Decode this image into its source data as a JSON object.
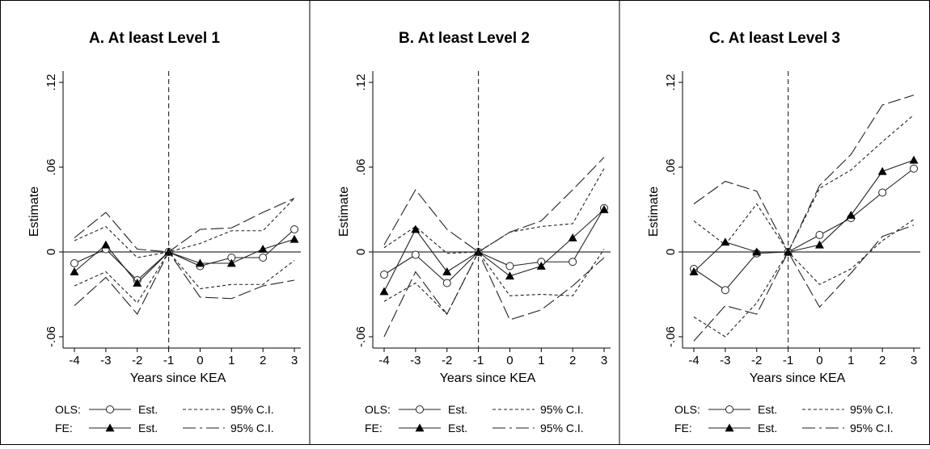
{
  "x_axis": {
    "label": "Years since KEA",
    "ticks": [
      "-4",
      "-3",
      "-2",
      "-1",
      "0",
      "1",
      "2",
      "3"
    ]
  },
  "y_axis": {
    "label": "Estimate",
    "ticks": [
      ".12",
      ".06",
      "0",
      "-.06"
    ]
  },
  "legend": {
    "ols_label": "OLS:",
    "fe_label": "FE:",
    "est_label": "Est.",
    "ci_label": "95% C.I."
  },
  "chart_data": [
    {
      "type": "line",
      "title": "A. At least Level 1",
      "xlabel": "Years since KEA",
      "ylabel": "Estimate",
      "x": [
        -4,
        -3,
        -2,
        -1,
        0,
        1,
        2,
        3
      ],
      "ylim": [
        -0.06,
        0.12
      ],
      "reference_lines": {
        "y": 0,
        "x": -1
      },
      "series": [
        {
          "name": "OLS Est.",
          "style": "line-hollow-circle",
          "values": [
            -0.008,
            0.002,
            -0.02,
            0.0,
            -0.01,
            -0.004,
            -0.004,
            0.016
          ]
        },
        {
          "name": "OLS 95% C.I. upper",
          "style": "short-dash",
          "values": [
            0.008,
            0.018,
            -0.004,
            0.0,
            0.006,
            0.015,
            0.015,
            0.038
          ]
        },
        {
          "name": "OLS 95% C.I. lower",
          "style": "short-dash",
          "values": [
            -0.024,
            -0.014,
            -0.036,
            0.0,
            -0.026,
            -0.023,
            -0.023,
            -0.006
          ]
        },
        {
          "name": "FE Est.",
          "style": "line-filled-triangle",
          "values": [
            -0.014,
            0.005,
            -0.022,
            0.0,
            -0.008,
            -0.008,
            0.002,
            0.009
          ]
        },
        {
          "name": "FE 95% C.I. upper",
          "style": "long-dash",
          "values": [
            0.01,
            0.028,
            0.002,
            0.0,
            0.016,
            0.017,
            0.028,
            0.038
          ]
        },
        {
          "name": "FE 95% C.I. lower",
          "style": "long-dash",
          "values": [
            -0.038,
            -0.018,
            -0.044,
            0.0,
            -0.032,
            -0.033,
            -0.024,
            -0.02
          ]
        }
      ]
    },
    {
      "type": "line",
      "title": "B. At least Level 2",
      "xlabel": "Years since KEA",
      "ylabel": "Estimate",
      "x": [
        -4,
        -3,
        -2,
        -1,
        0,
        1,
        2,
        3
      ],
      "ylim": [
        -0.06,
        0.12
      ],
      "reference_lines": {
        "y": 0,
        "x": -1
      },
      "series": [
        {
          "name": "OLS Est.",
          "style": "line-hollow-circle",
          "values": [
            -0.016,
            -0.002,
            -0.022,
            0.0,
            -0.01,
            -0.007,
            -0.007,
            0.031
          ]
        },
        {
          "name": "OLS 95% C.I. upper",
          "style": "short-dash",
          "values": [
            0.003,
            0.018,
            -0.001,
            0.0,
            0.014,
            0.018,
            0.02,
            0.059
          ]
        },
        {
          "name": "OLS 95% C.I. lower",
          "style": "short-dash",
          "values": [
            -0.035,
            -0.022,
            -0.044,
            0.0,
            -0.031,
            -0.03,
            -0.031,
            0.002
          ]
        },
        {
          "name": "FE Est.",
          "style": "line-filled-triangle",
          "values": [
            -0.028,
            0.016,
            -0.014,
            0.0,
            -0.017,
            -0.01,
            0.01,
            0.03
          ]
        },
        {
          "name": "FE 95% C.I. upper",
          "style": "long-dash",
          "values": [
            0.005,
            0.044,
            0.016,
            0.0,
            0.014,
            0.022,
            0.044,
            0.067
          ]
        },
        {
          "name": "FE 95% C.I. lower",
          "style": "long-dash",
          "values": [
            -0.06,
            -0.014,
            -0.044,
            0.0,
            -0.048,
            -0.041,
            -0.024,
            -0.004
          ]
        }
      ]
    },
    {
      "type": "line",
      "title": "C. At least Level 3",
      "xlabel": "Years since KEA",
      "ylabel": "Estimate",
      "x": [
        -4,
        -3,
        -2,
        -1,
        0,
        1,
        2,
        3
      ],
      "ylim": [
        -0.06,
        0.12
      ],
      "reference_lines": {
        "y": 0,
        "x": -1
      },
      "series": [
        {
          "name": "OLS Est.",
          "style": "line-hollow-circle",
          "values": [
            -0.012,
            -0.027,
            -0.001,
            0.0,
            0.012,
            0.024,
            0.042,
            0.059
          ]
        },
        {
          "name": "OLS 95% C.I. upper",
          "style": "short-dash",
          "values": [
            0.022,
            0.005,
            0.034,
            0.0,
            0.045,
            0.058,
            0.078,
            0.097
          ]
        },
        {
          "name": "OLS 95% C.I. lower",
          "style": "short-dash",
          "values": [
            -0.046,
            -0.06,
            -0.036,
            0.0,
            -0.023,
            -0.012,
            0.008,
            0.023
          ]
        },
        {
          "name": "FE Est.",
          "style": "line-filled-triangle",
          "values": [
            -0.014,
            0.007,
            0.0,
            0.0,
            0.005,
            0.026,
            0.057,
            0.065
          ]
        },
        {
          "name": "FE 95% C.I. upper",
          "style": "long-dash",
          "values": [
            0.034,
            0.05,
            0.043,
            0.0,
            0.047,
            0.069,
            0.104,
            0.111
          ]
        },
        {
          "name": "FE 95% C.I. lower",
          "style": "long-dash",
          "values": [
            -0.063,
            -0.038,
            -0.044,
            0.0,
            -0.039,
            -0.015,
            0.011,
            0.019
          ]
        }
      ]
    }
  ]
}
